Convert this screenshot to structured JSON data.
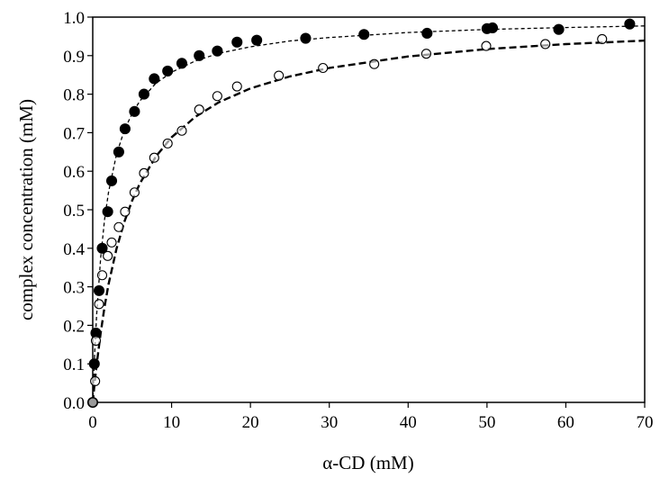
{
  "chart_data": {
    "type": "scatter",
    "title": "",
    "xlabel": "α-CD (mM)",
    "ylabel": "complex concentration (mM)",
    "xlim": [
      0,
      70
    ],
    "ylim": [
      0,
      1.0
    ],
    "xticks": [
      "0",
      "10",
      "20",
      "30",
      "40",
      "50",
      "60",
      "70"
    ],
    "yticks": [
      "0.0",
      "0.1",
      "0.2",
      "0.3",
      "0.4",
      "0.5",
      "0.6",
      "0.7",
      "0.8",
      "0.9",
      "1.0"
    ],
    "grid": false,
    "legend": "none",
    "series": [
      {
        "marker": "filled-circle",
        "color": "#000000",
        "x": [
          0,
          0.2,
          0.4,
          0.8,
          1.2,
          1.9,
          2.4,
          3.3,
          4.1,
          5.3,
          6.5,
          7.8,
          9.5,
          11.3,
          13.5,
          15.8,
          18.3,
          20.8,
          27.0,
          34.4,
          42.4,
          50.0,
          50.7,
          59.1,
          68.1
        ],
        "y": [
          0.0,
          0.1,
          0.18,
          0.29,
          0.4,
          0.495,
          0.575,
          0.65,
          0.71,
          0.755,
          0.8,
          0.84,
          0.86,
          0.88,
          0.9,
          0.912,
          0.935,
          0.94,
          0.945,
          0.955,
          0.958,
          0.97,
          0.972,
          0.968,
          0.982
        ]
      },
      {
        "marker": "open-circle",
        "color": "#000000",
        "x": [
          0,
          0.3,
          0.4,
          0.8,
          1.2,
          1.9,
          2.4,
          3.3,
          4.1,
          5.3,
          6.5,
          7.8,
          9.5,
          11.3,
          13.5,
          15.8,
          18.3,
          23.6,
          29.2,
          35.7,
          42.3,
          49.9,
          57.4,
          64.6
        ],
        "y": [
          0.0,
          0.055,
          0.16,
          0.255,
          0.33,
          0.38,
          0.415,
          0.455,
          0.495,
          0.545,
          0.595,
          0.635,
          0.672,
          0.705,
          0.76,
          0.795,
          0.82,
          0.848,
          0.868,
          0.878,
          0.905,
          0.925,
          0.93,
          0.943
        ]
      }
    ],
    "fit_lines": [
      {
        "for": "filled-circle",
        "style": "fine-dashed",
        "x": [
          0,
          0.25,
          0.5,
          1,
          1.5,
          2,
          3,
          4,
          5,
          6,
          8,
          10,
          13,
          16,
          20,
          25,
          30,
          40,
          50,
          60,
          70
        ],
        "y": [
          0,
          0.13,
          0.23,
          0.375,
          0.474,
          0.545,
          0.643,
          0.706,
          0.75,
          0.783,
          0.828,
          0.857,
          0.886,
          0.906,
          0.923,
          0.938,
          0.947,
          0.96,
          0.968,
          0.973,
          0.977
        ]
      },
      {
        "for": "open-circle",
        "style": "bold-dashed",
        "x": [
          0,
          0.25,
          0.5,
          1,
          1.5,
          2,
          3,
          4,
          5,
          6,
          8,
          10,
          13,
          16,
          20,
          25,
          30,
          40,
          50,
          60,
          70
        ],
        "y": [
          0,
          0.052,
          0.099,
          0.18,
          0.248,
          0.306,
          0.398,
          0.468,
          0.524,
          0.569,
          0.638,
          0.688,
          0.741,
          0.779,
          0.815,
          0.846,
          0.868,
          0.898,
          0.917,
          0.93,
          0.939
        ]
      }
    ]
  }
}
